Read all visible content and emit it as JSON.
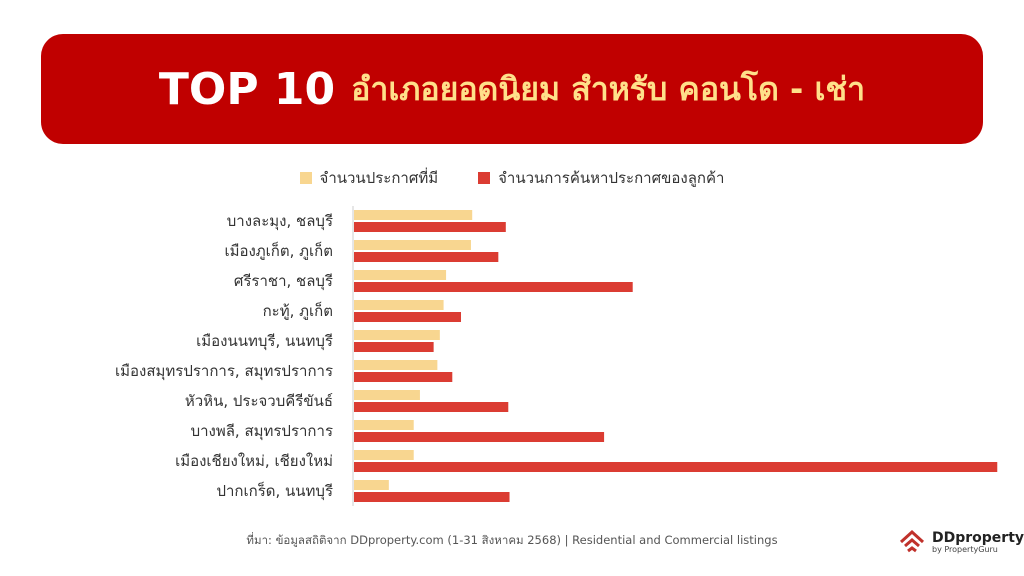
{
  "header": {
    "title_big": "TOP 10",
    "title_sub": "อำเภอยอดนิยม สำหรับ คอนโด - เช่า"
  },
  "colors": {
    "banner": "#c00000",
    "series_listings": "#f8d690",
    "series_searches": "#db3c32"
  },
  "chart_data": {
    "type": "bar",
    "orientation": "horizontal",
    "categories": [
      "บางละมุง, ชลบุรี",
      "เมืองภูเก็ต, ภูเก็ต",
      "ศรีราชา, ชลบุรี",
      "กะทู้, ภูเก็ต",
      "เมืองนนทบุรี, นนทบุรี",
      "เมืองสมุทรปราการ, สมุทรปราการ",
      "หัวหิน, ประจวบคีรีขันธ์",
      "บางพลี, สมุทรปราการ",
      "เมืองเชียงใหม่, เชียงใหม่",
      "ปากเกร็ด, นนทบุรี"
    ],
    "series": [
      {
        "name": "จำนวนประกาศที่มี",
        "values": [
          95,
          94,
          74,
          72,
          69,
          67,
          53,
          48,
          48,
          28
        ]
      },
      {
        "name": "จำนวนการค้นหาประกาศของลูกค้า",
        "values": [
          122,
          116,
          224,
          86,
          64,
          79,
          124,
          201,
          517,
          125
        ]
      }
    ],
    "xlim": [
      0,
      520
    ],
    "grid": false,
    "axis_labels_shown": false,
    "legend_position": "top-center"
  },
  "footer": {
    "source": "ที่มา: ข้อมูลสถิติจาก DDproperty.com (1-31 สิงหาคม 2568) | Residential and Commercial listings",
    "logo_brand": "DDproperty",
    "logo_by": "by PropertyGuru"
  }
}
